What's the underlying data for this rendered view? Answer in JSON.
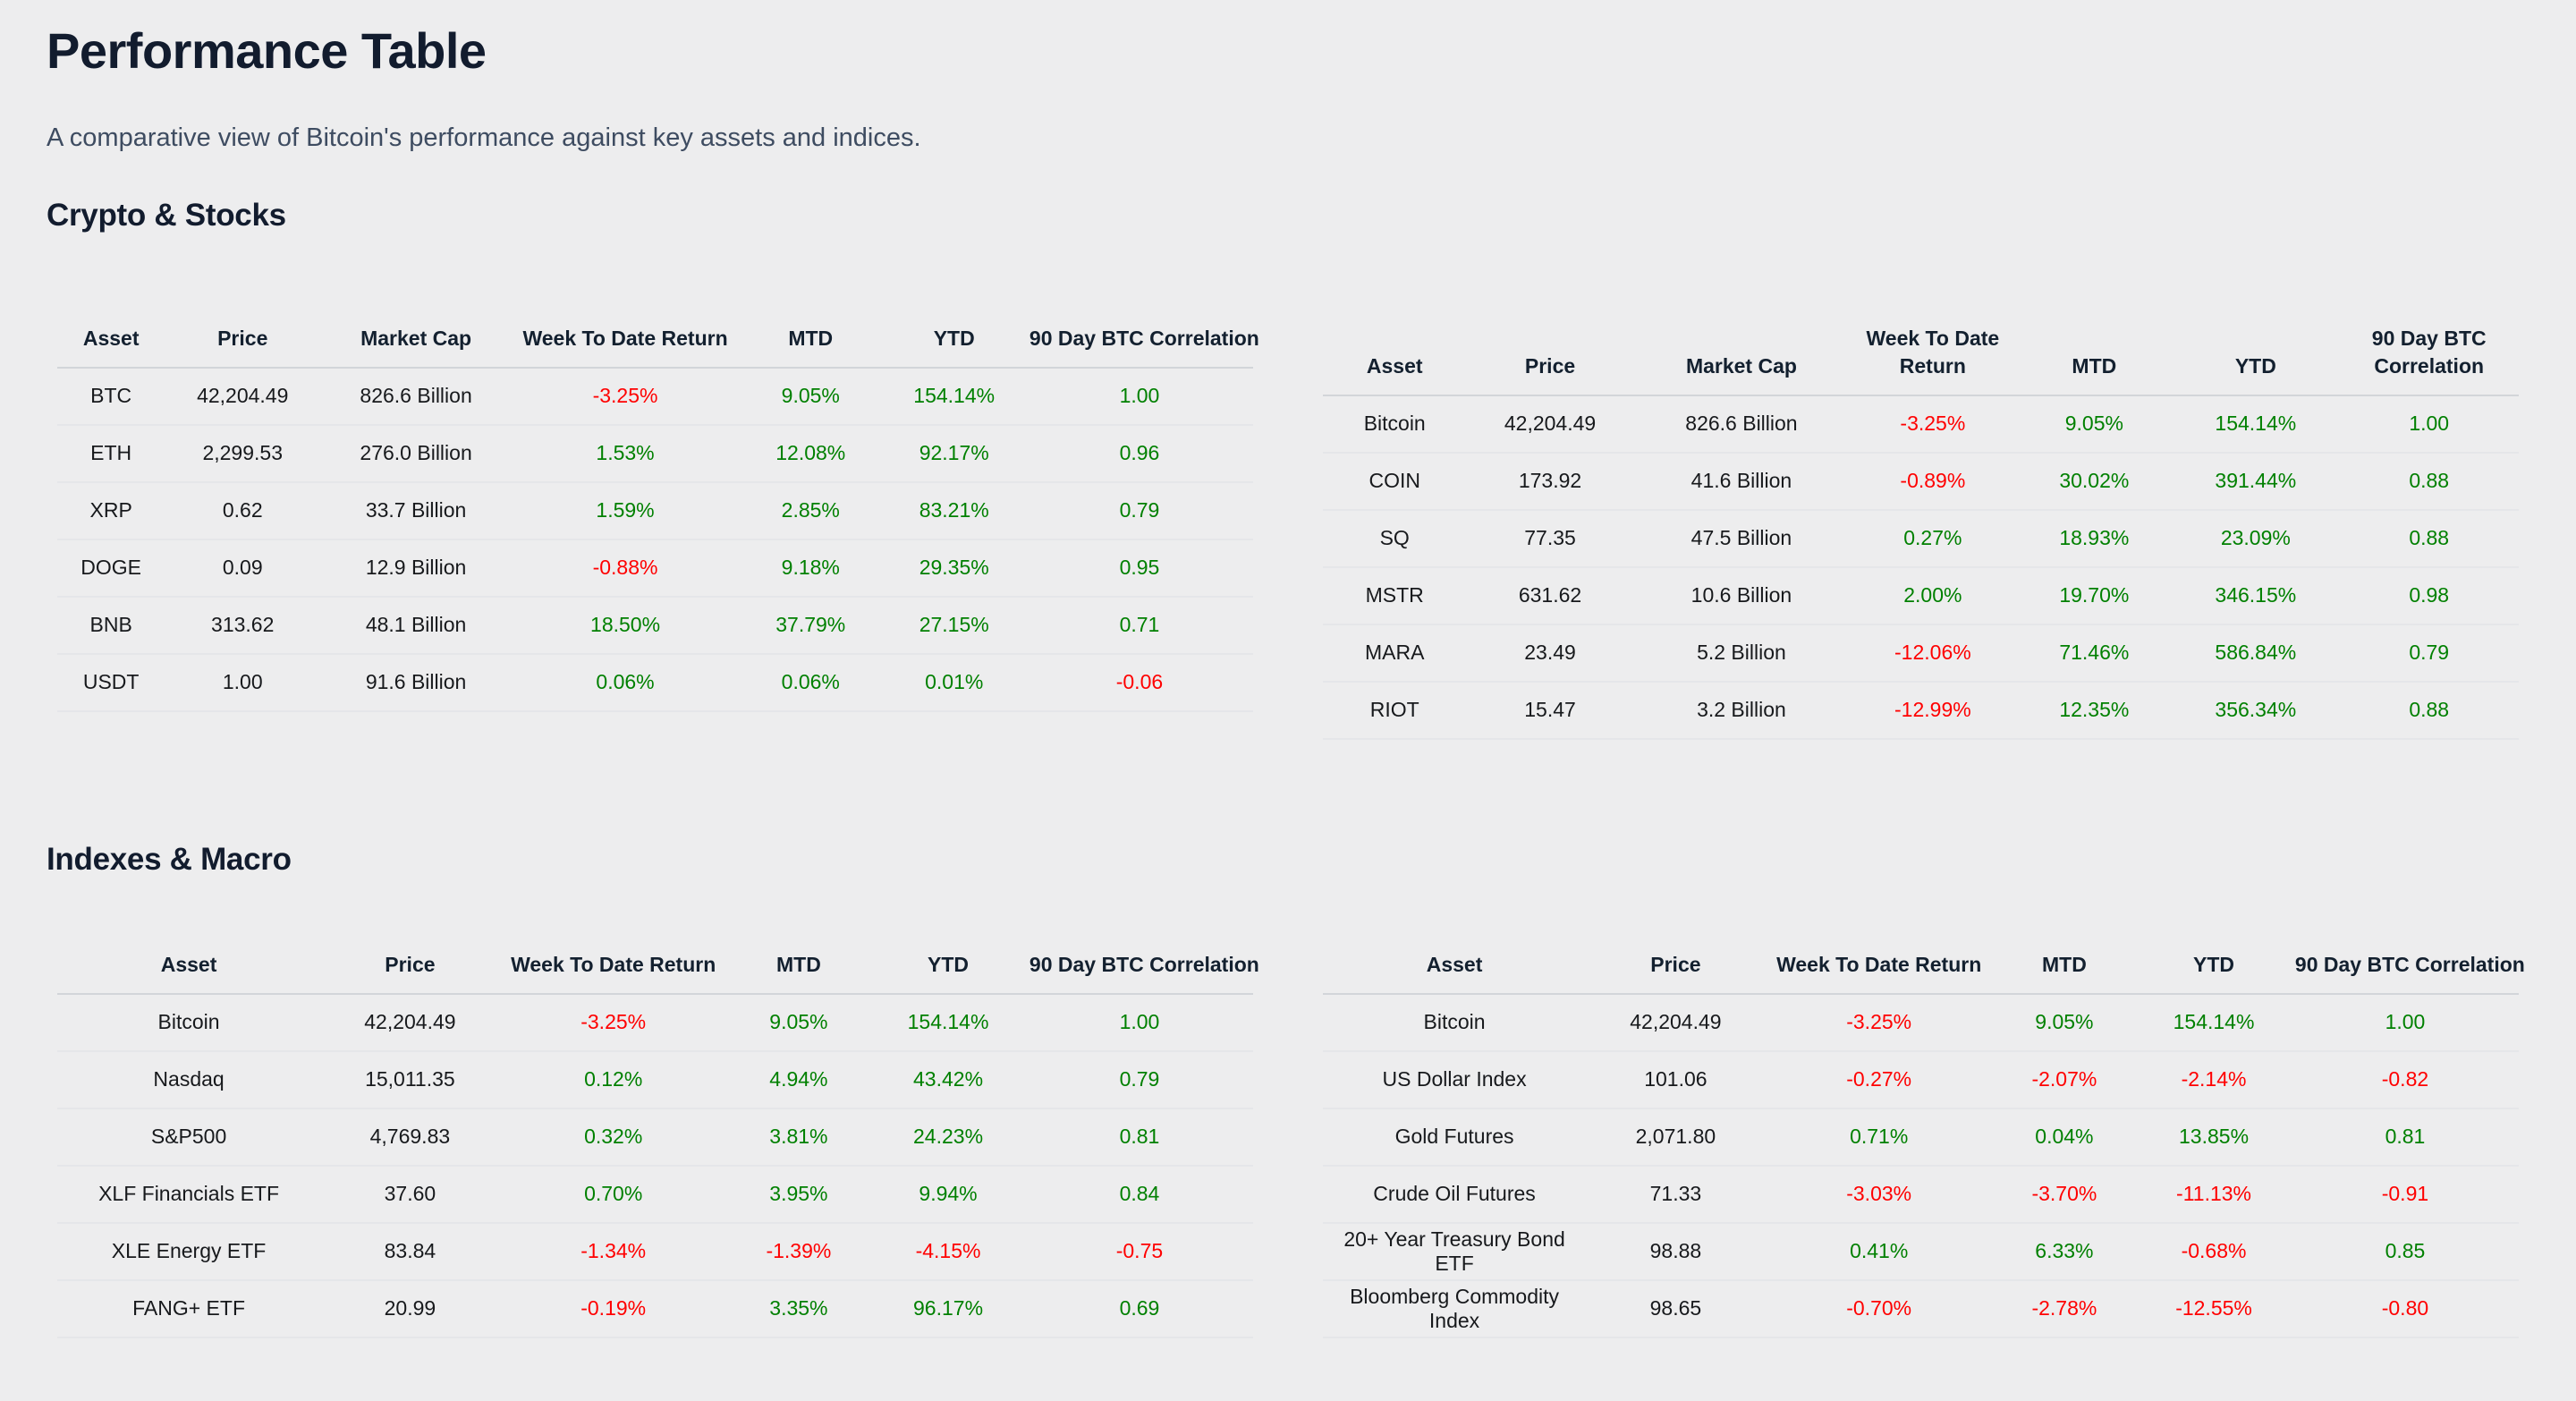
{
  "page": {
    "title": "Performance Table",
    "subtitle": "A comparative view of Bitcoin's performance against key assets and indices."
  },
  "colors": {
    "positive": "#008000",
    "negative": "#ff0000"
  },
  "sections": [
    {
      "heading": "Crypto & Stocks",
      "tables": [
        {
          "name": "crypto-majors",
          "signed_from": 3,
          "columns": [
            "Asset",
            "Price",
            "Market Cap",
            "Week To Date Return",
            "MTD",
            "YTD",
            "90 Day BTC Correlation"
          ],
          "rows": [
            [
              "BTC",
              "42,204.49",
              "826.6 Billion",
              "-3.25%",
              "9.05%",
              "154.14%",
              "1.00"
            ],
            [
              "ETH",
              "2,299.53",
              "276.0 Billion",
              "1.53%",
              "12.08%",
              "92.17%",
              "0.96"
            ],
            [
              "XRP",
              "0.62",
              "33.7 Billion",
              "1.59%",
              "2.85%",
              "83.21%",
              "0.79"
            ],
            [
              "DOGE",
              "0.09",
              "12.9 Billion",
              "-0.88%",
              "9.18%",
              "29.35%",
              "0.95"
            ],
            [
              "BNB",
              "313.62",
              "48.1 Billion",
              "18.50%",
              "37.79%",
              "27.15%",
              "0.71"
            ],
            [
              "USDT",
              "1.00",
              "91.6 Billion",
              "0.06%",
              "0.06%",
              "0.01%",
              "-0.06"
            ]
          ]
        },
        {
          "name": "crypto-equities",
          "signed_from": 3,
          "columns": [
            "Asset",
            "Price",
            "Market Cap",
            "Week To Date Return",
            "MTD",
            "YTD",
            "90 Day BTC Correlation"
          ],
          "rows": [
            [
              "Bitcoin",
              "42,204.49",
              "826.6 Billion",
              "-3.25%",
              "9.05%",
              "154.14%",
              "1.00"
            ],
            [
              "COIN",
              "173.92",
              "41.6 Billion",
              "-0.89%",
              "30.02%",
              "391.44%",
              "0.88"
            ],
            [
              "SQ",
              "77.35",
              "47.5 Billion",
              "0.27%",
              "18.93%",
              "23.09%",
              "0.88"
            ],
            [
              "MSTR",
              "631.62",
              "10.6 Billion",
              "2.00%",
              "19.70%",
              "346.15%",
              "0.98"
            ],
            [
              "MARA",
              "23.49",
              "5.2 Billion",
              "-12.06%",
              "71.46%",
              "586.84%",
              "0.79"
            ],
            [
              "RIOT",
              "15.47",
              "3.2 Billion",
              "-12.99%",
              "12.35%",
              "356.34%",
              "0.88"
            ]
          ]
        }
      ]
    },
    {
      "heading": "Indexes & Macro",
      "tables": [
        {
          "name": "indexes",
          "signed_from": 2,
          "columns": [
            "Asset",
            "Price",
            "Week To Date Return",
            "MTD",
            "YTD",
            "90 Day BTC Correlation"
          ],
          "rows": [
            [
              "Bitcoin",
              "42,204.49",
              "-3.25%",
              "9.05%",
              "154.14%",
              "1.00"
            ],
            [
              "Nasdaq",
              "15,011.35",
              "0.12%",
              "4.94%",
              "43.42%",
              "0.79"
            ],
            [
              "S&P500",
              "4,769.83",
              "0.32%",
              "3.81%",
              "24.23%",
              "0.81"
            ],
            [
              "XLF Financials ETF",
              "37.60",
              "0.70%",
              "3.95%",
              "9.94%",
              "0.84"
            ],
            [
              "XLE Energy ETF",
              "83.84",
              "-1.34%",
              "-1.39%",
              "-4.15%",
              "-0.75"
            ],
            [
              "FANG+ ETF",
              "20.99",
              "-0.19%",
              "3.35%",
              "96.17%",
              "0.69"
            ]
          ]
        },
        {
          "name": "macro",
          "signed_from": 2,
          "columns": [
            "Asset",
            "Price",
            "Week To Date Return",
            "MTD",
            "YTD",
            "90 Day BTC Correlation"
          ],
          "rows": [
            [
              "Bitcoin",
              "42,204.49",
              "-3.25%",
              "9.05%",
              "154.14%",
              "1.00"
            ],
            [
              "US Dollar Index",
              "101.06",
              "-0.27%",
              "-2.07%",
              "-2.14%",
              "-0.82"
            ],
            [
              "Gold Futures",
              "2,071.80",
              "0.71%",
              "0.04%",
              "13.85%",
              "0.81"
            ],
            [
              "Crude Oil Futures",
              "71.33",
              "-3.03%",
              "-3.70%",
              "-11.13%",
              "-0.91"
            ],
            [
              "20+ Year Treasury Bond ETF",
              "98.88",
              "0.41%",
              "6.33%",
              "-0.68%",
              "0.85"
            ],
            [
              "Bloomberg Commodity Index",
              "98.65",
              "-0.70%",
              "-2.78%",
              "-12.55%",
              "-0.80"
            ]
          ]
        }
      ]
    }
  ]
}
